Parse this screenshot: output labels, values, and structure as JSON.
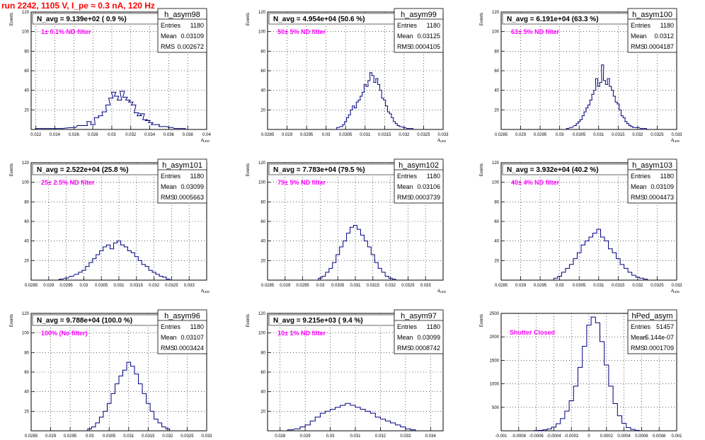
{
  "header": {
    "run_title": "run 2242,  1105 V, I_pe ≈ 0.3 nA, 120 Hz"
  },
  "colors": {
    "title": "#ff0000",
    "annotation": "#ff00ff",
    "histogram": "#000080",
    "grid": "#000000"
  },
  "chart_data": [
    {
      "type": "bar",
      "panel": 0,
      "stats_title": "h_asym98",
      "entries": "1180",
      "mean": "0.03109",
      "rms": "0.002672",
      "navg": "N_avg = 9.139e+02 ( 0.9 %)",
      "annotation": "1± 0.1% ND filter",
      "ylabel": "Events",
      "xlabel": "A",
      "xlabel_sub": "LED",
      "xlim": [
        0.0215,
        0.04
      ],
      "ylim": [
        0,
        120
      ],
      "xticks": [
        "0.022",
        "0.024",
        "0.026",
        "0.028",
        "0.03",
        "0.032",
        "0.034",
        "0.036",
        "0.038",
        "0.04"
      ],
      "yticks": [
        "20",
        "40",
        "60",
        "80",
        "100",
        "120"
      ],
      "x": [
        0.0222,
        0.0245,
        0.026,
        0.0266,
        0.0272,
        0.0276,
        0.028,
        0.0284,
        0.0288,
        0.0292,
        0.0296,
        0.0299,
        0.0302,
        0.0305,
        0.0308,
        0.0311,
        0.0314,
        0.0317,
        0.032,
        0.0323,
        0.0326,
        0.0329,
        0.0332,
        0.0335,
        0.0338,
        0.0341,
        0.0344,
        0.0348,
        0.0352,
        0.0356,
        0.0362,
        0.0368,
        0.0375
      ],
      "values": [
        1,
        1,
        2,
        4,
        4,
        8,
        5,
        12,
        14,
        18,
        25,
        32,
        38,
        34,
        30,
        39,
        33,
        30,
        28,
        25,
        17,
        14,
        16,
        10,
        9,
        7,
        5,
        5,
        3,
        3,
        2,
        1,
        1
      ]
    },
    {
      "type": "bar",
      "panel": 1,
      "stats_title": "h_asym99",
      "entries": "1180",
      "mean": "0.03125",
      "rms": "0.0004105",
      "navg": "N_avg = 4.954e+04 (50.6 %)",
      "annotation": "50± 5% ND filter",
      "ylabel": "Events",
      "xlabel": "A",
      "xlabel_sub": "LED",
      "xlim": [
        0.0285,
        0.033
      ],
      "ylim": [
        0,
        120
      ],
      "xticks": [
        "0.0285",
        "0.029",
        "0.0295",
        "0.03",
        "0.0305",
        "0.031",
        "0.0315",
        "0.032",
        "0.0325",
        "0.033"
      ],
      "yticks": [
        "20",
        "40",
        "60",
        "80",
        "100",
        "120"
      ],
      "x": [
        0.0303,
        0.0304,
        0.03045,
        0.0305,
        0.03055,
        0.0306,
        0.03065,
        0.0307,
        0.03075,
        0.0308,
        0.03085,
        0.0309,
        0.03095,
        0.031,
        0.03105,
        0.0311,
        0.03115,
        0.0312,
        0.03125,
        0.0313,
        0.03135,
        0.0314,
        0.03145,
        0.0315,
        0.03155,
        0.0316,
        0.03165,
        0.0317,
        0.03175,
        0.0318,
        0.03185,
        0.0319,
        0.032,
        0.0321,
        0.0322
      ],
      "values": [
        2,
        3,
        5,
        8,
        12,
        15,
        20,
        24,
        22,
        28,
        30,
        34,
        38,
        46,
        44,
        50,
        58,
        55,
        48,
        52,
        46,
        40,
        32,
        30,
        24,
        18,
        16,
        12,
        8,
        6,
        4,
        3,
        2,
        1,
        1
      ]
    },
    {
      "type": "bar",
      "panel": 2,
      "stats_title": "h_asym100",
      "entries": "1180",
      "mean": "0.0312",
      "rms": "0.0004187",
      "navg": "N_avg = 6.191e+04 (63.3 %)",
      "annotation": "63± 5% ND filter",
      "ylabel": "Events",
      "xlabel": "A",
      "xlabel_sub": "LED",
      "xlim": [
        0.0285,
        0.033
      ],
      "ylim": [
        0,
        120
      ],
      "xticks": [
        "0.0285",
        "0.029",
        "0.0295",
        "0.03",
        "0.0305",
        "0.031",
        "0.0315",
        "0.032",
        "0.0325",
        "0.033"
      ],
      "yticks": [
        "20",
        "40",
        "60",
        "80",
        "100",
        "120"
      ],
      "x": [
        0.0302,
        0.0303,
        0.0304,
        0.03045,
        0.0305,
        0.03055,
        0.0306,
        0.03065,
        0.0307,
        0.03075,
        0.0308,
        0.03085,
        0.0309,
        0.03095,
        0.031,
        0.03105,
        0.0311,
        0.03115,
        0.0312,
        0.03125,
        0.0313,
        0.03135,
        0.0314,
        0.03145,
        0.0315,
        0.03155,
        0.0316,
        0.03165,
        0.0317,
        0.03175,
        0.0318,
        0.03185,
        0.0319,
        0.032,
        0.0321,
        0.0322
      ],
      "values": [
        1,
        2,
        4,
        6,
        8,
        10,
        14,
        18,
        22,
        25,
        30,
        36,
        40,
        52,
        44,
        48,
        66,
        50,
        46,
        52,
        44,
        40,
        34,
        28,
        26,
        20,
        14,
        12,
        8,
        6,
        4,
        3,
        2,
        2,
        1,
        1
      ]
    },
    {
      "type": "bar",
      "panel": 3,
      "stats_title": "h_asym101",
      "entries": "1180",
      "mean": "0.03099",
      "rms": "0.0005663",
      "navg": "N_avg = 2.522e+04 (25.8 %)",
      "annotation": "25± 2.5% ND filter",
      "ylabel": "Events",
      "xlabel": "A",
      "xlabel_sub": "LED",
      "xlim": [
        0.0285,
        0.0335
      ],
      "ylim": [
        0,
        120
      ],
      "xticks": [
        "0.0285",
        "0.029",
        "0.0295",
        "0.03",
        "0.0305",
        "0.031",
        "0.0315",
        "0.032",
        "0.0325",
        "0.033"
      ],
      "yticks": [
        "20",
        "40",
        "60",
        "80",
        "100",
        "120"
      ],
      "x": [
        0.02935,
        0.0295,
        0.02965,
        0.0298,
        0.0299,
        0.03,
        0.0301,
        0.0302,
        0.0303,
        0.0304,
        0.0305,
        0.0306,
        0.0307,
        0.0308,
        0.0309,
        0.031,
        0.0311,
        0.0312,
        0.0313,
        0.0314,
        0.0315,
        0.0316,
        0.0317,
        0.0318,
        0.0319,
        0.032,
        0.0321,
        0.0322,
        0.0323,
        0.0324
      ],
      "values": [
        1,
        2,
        4,
        6,
        8,
        10,
        14,
        18,
        22,
        26,
        30,
        34,
        36,
        32,
        38,
        40,
        36,
        34,
        30,
        28,
        24,
        20,
        16,
        14,
        10,
        8,
        6,
        4,
        3,
        1
      ]
    },
    {
      "type": "bar",
      "panel": 4,
      "stats_title": "h_asym102",
      "entries": "1180",
      "mean": "0.03106",
      "rms": "0.0003739",
      "navg": "N_avg = 7.783e+04 (79.5 %)",
      "annotation": "79± 5% ND filter",
      "ylabel": "Events",
      "xlabel": "A",
      "xlabel_sub": "LED",
      "xlim": [
        0.0285,
        0.0335
      ],
      "ylim": [
        0,
        120
      ],
      "xticks": [
        "0.0285",
        "0.029",
        "0.0295",
        "0.03",
        "0.0305",
        "0.031",
        "0.0315",
        "0.032",
        "0.0325",
        "0.033"
      ],
      "yticks": [
        "20",
        "40",
        "60",
        "80",
        "100",
        "120"
      ],
      "x": [
        0.03,
        0.0301,
        0.0302,
        0.0303,
        0.0304,
        0.0305,
        0.0306,
        0.0307,
        0.0308,
        0.0309,
        0.031,
        0.0311,
        0.0312,
        0.0313,
        0.0314,
        0.0315,
        0.0316,
        0.0317,
        0.0318,
        0.0319,
        0.032,
        0.0321
      ],
      "values": [
        2,
        4,
        8,
        12,
        18,
        26,
        34,
        40,
        48,
        54,
        56,
        52,
        46,
        40,
        34,
        26,
        18,
        12,
        8,
        4,
        2,
        1
      ]
    },
    {
      "type": "bar",
      "panel": 5,
      "stats_title": "h_asym103",
      "entries": "1180",
      "mean": "0.03109",
      "rms": "0.0004473",
      "navg": "N_avg = 3.932e+04 (40.2 %)",
      "annotation": "40± 4% ND filter",
      "ylabel": "Events",
      "xlabel": "A",
      "xlabel_sub": "LED",
      "xlim": [
        0.0285,
        0.033
      ],
      "ylim": [
        0,
        120
      ],
      "xticks": [
        "0.0285",
        "0.029",
        "0.0295",
        "0.03",
        "0.0305",
        "0.031",
        "0.0315",
        "0.032",
        "0.0325",
        "0.033"
      ],
      "yticks": [
        "20",
        "40",
        "60",
        "80",
        "100",
        "120"
      ],
      "x": [
        0.0299,
        0.03,
        0.0301,
        0.0302,
        0.0303,
        0.0304,
        0.0305,
        0.0306,
        0.0307,
        0.0308,
        0.0309,
        0.031,
        0.0311,
        0.0312,
        0.0313,
        0.0314,
        0.0315,
        0.0316,
        0.0317,
        0.0318,
        0.0319,
        0.032,
        0.0321,
        0.0322
      ],
      "values": [
        2,
        4,
        8,
        12,
        16,
        22,
        28,
        36,
        40,
        44,
        48,
        52,
        44,
        40,
        32,
        28,
        22,
        16,
        12,
        8,
        5,
        3,
        2,
        1
      ]
    },
    {
      "type": "bar",
      "panel": 6,
      "stats_title": "h_asym96",
      "entries": "1180",
      "mean": "0.03107",
      "rms": "0.0003424",
      "navg": "N_avg = 9.788e+04 (100.0 %)",
      "annotation": "100% (No filter)",
      "ylabel": "Events",
      "xlabel": "A",
      "xlabel_sub": "LED",
      "xlim": [
        0.0285,
        0.033
      ],
      "ylim": [
        0,
        120
      ],
      "xticks": [
        "0.0285",
        "0.029",
        "0.0295",
        "0.03",
        "0.0305",
        "0.031",
        "0.0315",
        "0.032",
        "0.0325",
        "0.033"
      ],
      "yticks": [
        "20",
        "40",
        "60",
        "80",
        "100",
        "120"
      ],
      "x": [
        0.03,
        0.0301,
        0.0302,
        0.0303,
        0.0304,
        0.0305,
        0.0306,
        0.0307,
        0.0308,
        0.0309,
        0.031,
        0.0311,
        0.0312,
        0.0313,
        0.0314,
        0.0315,
        0.0316,
        0.0317,
        0.0318,
        0.0319,
        0.032
      ],
      "values": [
        2,
        4,
        8,
        14,
        20,
        28,
        38,
        48,
        56,
        62,
        70,
        66,
        58,
        48,
        38,
        28,
        20,
        12,
        8,
        4,
        2
      ]
    },
    {
      "type": "bar",
      "panel": 7,
      "stats_title": "h_asym97",
      "entries": "1180",
      "mean": "0.03099",
      "rms": "0.0008742",
      "navg": "N_avg = 9.215e+03 ( 9.4 %)",
      "annotation": "10± 1% ND filter",
      "ylabel": "Events",
      "xlabel": "A",
      "xlabel_sub": "LED",
      "xlim": [
        0.0275,
        0.0345
      ],
      "ylim": [
        0,
        120
      ],
      "xticks": [
        "0.028",
        "0.029",
        "0.03",
        "0.031",
        "0.032",
        "0.033",
        "0.034"
      ],
      "yticks": [
        "20",
        "40",
        "60",
        "80",
        "100",
        "120"
      ],
      "x": [
        0.0284,
        0.0287,
        0.0289,
        0.0291,
        0.0293,
        0.0295,
        0.0297,
        0.0299,
        0.0301,
        0.0303,
        0.0305,
        0.0307,
        0.0309,
        0.0311,
        0.0313,
        0.0315,
        0.0317,
        0.0319,
        0.0321,
        0.0323,
        0.0325,
        0.0327,
        0.0329,
        0.0331,
        0.0333
      ],
      "values": [
        1,
        2,
        4,
        6,
        10,
        14,
        18,
        20,
        22,
        24,
        26,
        28,
        26,
        24,
        22,
        20,
        18,
        14,
        12,
        10,
        8,
        6,
        4,
        2,
        1
      ]
    },
    {
      "type": "bar",
      "panel": 8,
      "stats_title": "hPed_asym",
      "entries": "51457",
      "mean": "-5.144e-07",
      "rms": "0.0001709",
      "navg": "",
      "annotation": "Shutter Closed",
      "ylabel": "Events",
      "xlabel": "",
      "xlabel_sub": "",
      "xlim": [
        -0.001,
        0.001
      ],
      "ylim": [
        0,
        2500
      ],
      "xticks": [
        "-0.001",
        "-0.0008",
        "-0.0006",
        "-0.0004",
        "-0.0002",
        "0",
        "0.0002",
        "0.0004",
        "0.0006",
        "0.0008",
        "0.001"
      ],
      "yticks": [
        "500",
        "1000",
        "1500",
        "2000",
        "2500"
      ],
      "x": [
        -0.0006,
        -0.00055,
        -0.0005,
        -0.00045,
        -0.0004,
        -0.00035,
        -0.0003,
        -0.00025,
        -0.0002,
        -0.00015,
        -0.0001,
        -5e-05,
        0,
        5e-05,
        0.0001,
        0.00015,
        0.0002,
        0.00025,
        0.0003,
        0.00035,
        0.0004,
        0.00045,
        0.0005,
        0.00055
      ],
      "values": [
        5,
        10,
        20,
        40,
        80,
        150,
        260,
        420,
        640,
        950,
        1350,
        1800,
        2250,
        2420,
        2300,
        1900,
        1400,
        950,
        580,
        320,
        160,
        70,
        30,
        10
      ]
    }
  ]
}
